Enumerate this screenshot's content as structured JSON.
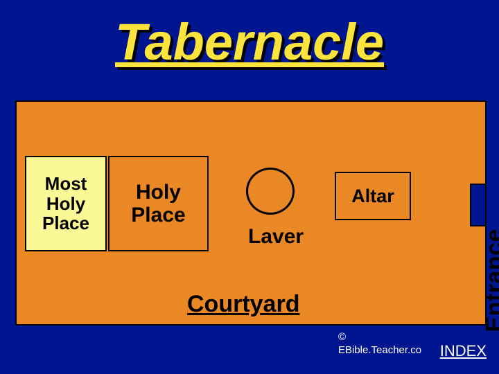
{
  "title": "Tabernacle",
  "diagram": {
    "type": "infographic",
    "background_color": "#001690",
    "title_color": "#fce43c",
    "title_shadow_color": "#000000",
    "title_fontsize": 74,
    "courtyard": {
      "fill": "#e98824",
      "border_color": "#000000",
      "label": "Courtyard",
      "label_fontsize": 34
    },
    "most_holy": {
      "label": "Most\nHoly\nPlace",
      "fill": "#fbf995",
      "border_color": "#000000",
      "fontsize": 26
    },
    "holy_place": {
      "label": "Holy\nPlace",
      "fill": "#e98824",
      "border_color": "#000000",
      "fontsize": 30
    },
    "laver": {
      "label": "Laver",
      "shape": "circle",
      "border_color": "#000000",
      "fontsize": 30
    },
    "altar": {
      "label": "Altar",
      "shape": "rect",
      "border_color": "#000000",
      "fontsize": 27
    },
    "entrance": {
      "label": "Entrance",
      "orientation": "vertical",
      "fontsize": 34,
      "notch_fill": "#001690",
      "notch_border": "#000000"
    }
  },
  "footer": {
    "copyright_symbol": "©",
    "copyright_text": "EBible.Teacher.co",
    "index_label": "INDEX",
    "text_color": "#ffffff",
    "fontsize_small": 15,
    "fontsize_index": 22
  }
}
